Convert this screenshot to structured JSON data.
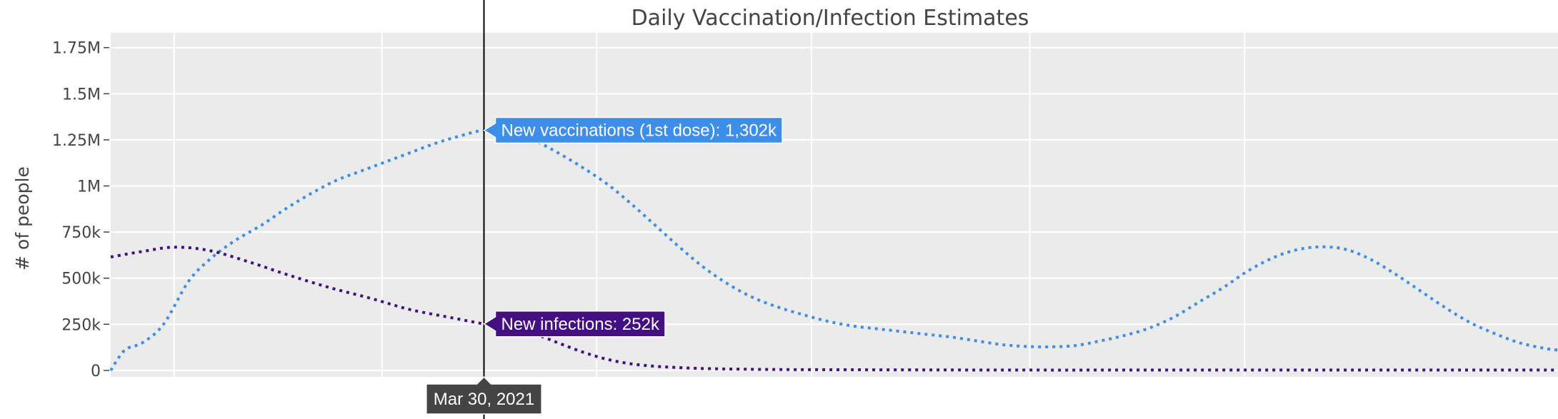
{
  "chart_data": {
    "type": "line",
    "title": "Daily Vaccination/Infection Estimates",
    "xlabel": "",
    "ylabel": "# of people",
    "ylim": [
      -35000,
      1830000
    ],
    "yticks": [
      0,
      250000,
      500000,
      750000,
      1000000,
      1250000,
      1500000,
      1750000
    ],
    "ytick_labels": [
      "0",
      "250k",
      "500k",
      "750k",
      "1M",
      "1.25M",
      "1.5M",
      "1.75M"
    ],
    "xlim": [
      "2020-12-14",
      "2022-01-29"
    ],
    "x_gridlines": [
      "2021-01-01",
      "2021-03-01",
      "2021-05-01",
      "2021-07-01",
      "2021-09-01",
      "2021-11-01"
    ],
    "grid": true,
    "background_color": "#ebebeb",
    "series": [
      {
        "name": "New vaccinations (1st dose)",
        "color": "#3d8ee8",
        "dash": "dot",
        "x": [
          "2020-12-14",
          "2020-12-18",
          "2020-12-23",
          "2020-12-29",
          "2021-01-05",
          "2021-01-11",
          "2021-01-18",
          "2021-01-26",
          "2021-02-02",
          "2021-02-09",
          "2021-02-16",
          "2021-02-23",
          "2021-03-02",
          "2021-03-09",
          "2021-03-16",
          "2021-03-23",
          "2021-03-30",
          "2021-04-06",
          "2021-04-13",
          "2021-04-20",
          "2021-04-27",
          "2021-05-04",
          "2021-05-11",
          "2021-05-18",
          "2021-05-25",
          "2021-06-01",
          "2021-06-08",
          "2021-06-15",
          "2021-06-22",
          "2021-06-29",
          "2021-07-06",
          "2021-07-13",
          "2021-07-20",
          "2021-07-27",
          "2021-08-03",
          "2021-08-10",
          "2021-08-17",
          "2021-08-24",
          "2021-08-31",
          "2021-09-07",
          "2021-09-14",
          "2021-09-21",
          "2021-09-28",
          "2021-10-05",
          "2021-10-12",
          "2021-10-19",
          "2021-10-26",
          "2021-11-02",
          "2021-11-09",
          "2021-11-16",
          "2021-11-23",
          "2021-11-30",
          "2021-12-07",
          "2021-12-14",
          "2021-12-21",
          "2021-12-28",
          "2022-01-04",
          "2022-01-11",
          "2022-01-18",
          "2022-01-25",
          "2022-01-29"
        ],
        "values": [
          0,
          110000,
          150000,
          250000,
          480000,
          600000,
          700000,
          790000,
          880000,
          960000,
          1030000,
          1080000,
          1130000,
          1180000,
          1230000,
          1270000,
          1302000,
          1295000,
          1250000,
          1180000,
          1100000,
          1010000,
          900000,
          780000,
          660000,
          550000,
          460000,
          390000,
          340000,
          300000,
          265000,
          240000,
          225000,
          210000,
          195000,
          180000,
          160000,
          140000,
          130000,
          128000,
          135000,
          160000,
          190000,
          230000,
          290000,
          370000,
          450000,
          540000,
          610000,
          655000,
          670000,
          655000,
          600000,
          520000,
          430000,
          340000,
          260000,
          200000,
          150000,
          120000,
          110000
        ]
      },
      {
        "name": "New infections",
        "color": "#440f81",
        "dash": "dot",
        "x": [
          "2020-12-14",
          "2020-12-23",
          "2021-01-01",
          "2021-01-11",
          "2021-01-22",
          "2021-02-02",
          "2021-02-14",
          "2021-02-26",
          "2021-03-09",
          "2021-03-21",
          "2021-03-30",
          "2021-04-06",
          "2021-04-13",
          "2021-04-20",
          "2021-04-27",
          "2021-05-04",
          "2021-05-11",
          "2021-05-18",
          "2021-05-25",
          "2021-06-01",
          "2021-06-15",
          "2021-07-01",
          "2021-08-01",
          "2021-09-01",
          "2021-10-01",
          "2021-11-01",
          "2021-12-01",
          "2022-01-01",
          "2022-01-29"
        ],
        "values": [
          615000,
          645000,
          668000,
          650000,
          590000,
          520000,
          450000,
          390000,
          330000,
          285000,
          252000,
          232000,
          200000,
          150000,
          100000,
          60000,
          35000,
          22000,
          15000,
          10000,
          6000,
          4000,
          3000,
          2000,
          2000,
          2000,
          2000,
          2000,
          2000
        ]
      }
    ],
    "hover": {
      "date": "2021-03-30",
      "date_label": "Mar 30, 2021",
      "labels": [
        {
          "text": "New vaccinations (1st dose): 1,302k",
          "value": 1302000,
          "color": "#3d8ee8"
        },
        {
          "text": "New infections: 252k",
          "value": 252000,
          "color": "#440f81"
        }
      ]
    }
  }
}
